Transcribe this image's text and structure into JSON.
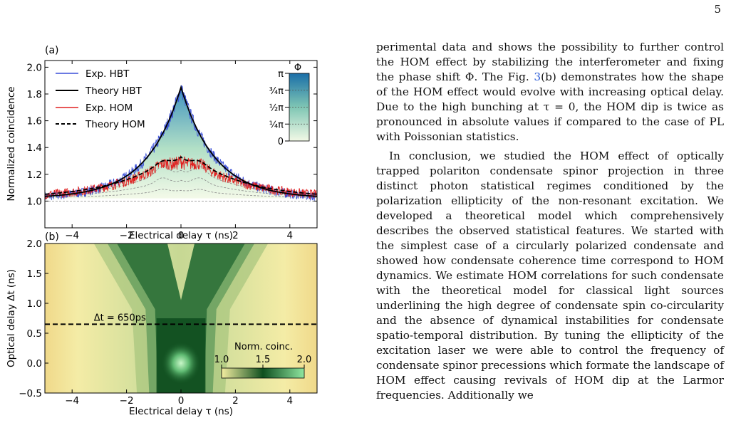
{
  "page_number": "5",
  "chart_data": [
    {
      "type": "line",
      "panel_label": "(a)",
      "xlabel": "Electrical delay τ (ns)",
      "ylabel": "Normalized coincidence",
      "xlim": [
        -5,
        5
      ],
      "ylim": [
        0.8,
        2.05
      ],
      "x_ticks": [
        -4,
        -2,
        0,
        2,
        4
      ],
      "y_ticks": [
        1.0,
        1.2,
        1.4,
        1.6,
        1.8,
        2.0
      ],
      "legend_position": "top-left",
      "series": [
        {
          "name": "Exp. HBT",
          "color": "#3a4fd8",
          "style": "noisy",
          "peak": 1.85,
          "base": 1.02
        },
        {
          "name": "Theory HBT",
          "color": "#000000",
          "style": "solid",
          "peak": 1.85,
          "base": 1.02
        },
        {
          "name": "Exp. HOM",
          "color": "#e02020",
          "style": "noisy",
          "peak": 1.37,
          "dip": 1.33,
          "base": 1.02
        },
        {
          "name": "Theory HOM",
          "color": "#000000",
          "style": "dashed",
          "peak": 1.4,
          "dip": 1.35,
          "base": 1.02
        }
      ],
      "phase_colorbar": {
        "title": "Φ",
        "ticks": [
          "0",
          "¼π",
          "½π",
          "¾π",
          "π"
        ],
        "colors": [
          "#f2f9e6",
          "#7fc6b4",
          "#1a6ea8"
        ]
      }
    },
    {
      "type": "heatmap",
      "panel_label": "(b)",
      "xlabel": "Electrical delay τ (ns)",
      "ylabel": "Optical delay Δt (ns)",
      "xlim": [
        -5,
        5
      ],
      "ylim": [
        -0.5,
        2.0
      ],
      "x_ticks": [
        -4,
        -2,
        0,
        2,
        4
      ],
      "y_ticks": [
        -0.5,
        0.0,
        0.5,
        1.0,
        1.5,
        2.0
      ],
      "annotation": "Δt = 650ps",
      "annotation_value": 0.65,
      "colorbar": {
        "title": "Norm. coinc.",
        "ticks": [
          "1.0",
          "1.5",
          "2.0"
        ],
        "colors": [
          "#f3eda0",
          "#0f4f1f",
          "#8fe6a0"
        ]
      }
    }
  ],
  "text": {
    "p1": "perimental data and shows the possibility to further control the HOM effect by stabilizing the interferometer and fixing the phase shift Φ. The Fig. ",
    "p1_ref": "3",
    "p1_end": "(b) demonstrates how the shape of the HOM effect would evolve with increasing optical delay. Due to the high bunching at τ = 0, the HOM dip is twice as pronounced in absolute values if compared to the case of PL with Poissonian statistics.",
    "p2": "In conclusion, we studied the HOM effect of optically trapped polariton condensate spinor projection in three distinct photon statistical regimes conditioned by the polarization ellipticity of the non-resonant excitation. We developed a theoretical model which comprehensively describes the observed statistical features. We started with the simplest case of a circularly polarized condensate and showed how condensate coherence time correspond to HOM dynamics. We estimate HOM correlations for such condensate with the theoretical model for classical light sources underlining the high degree of condensate spin co-circularity and the absence of dynamical instabilities for condensate spatio-temporal distribution. By tuning the ellipticity of the excitation laser we were able to control the frequency of condensate spinor precessions which formate the landscape of HOM effect causing revivals of HOM dip at the Larmor frequencies. Additionally we"
  }
}
